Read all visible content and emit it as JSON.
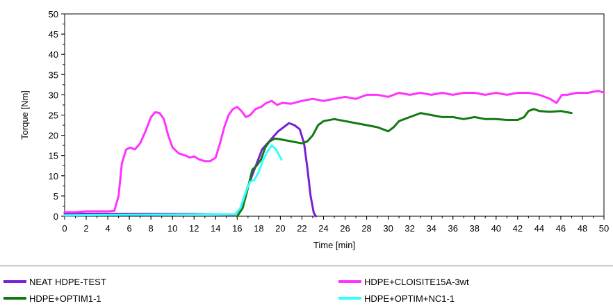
{
  "chart_data": {
    "type": "line",
    "title": "",
    "xlabel": "Time [min]",
    "ylabel": "Torque [Nm]",
    "xlim": [
      0,
      50
    ],
    "ylim": [
      0,
      50
    ],
    "x_ticks": [
      "0",
      "2",
      "4",
      "6",
      "8",
      "10",
      "12",
      "14",
      "16",
      "18",
      "20",
      "22",
      "24",
      "26",
      "28",
      "30",
      "32",
      "34",
      "36",
      "38",
      "40",
      "42",
      "44",
      "46",
      "48",
      "50"
    ],
    "y_ticks": [
      "0",
      "5",
      "10",
      "15",
      "20",
      "25",
      "30",
      "35",
      "40",
      "45",
      "50"
    ],
    "grid": false,
    "legend_position": "bottom",
    "series": [
      {
        "name": "NEAT HDPE-TEST",
        "color": "#7a1fd6",
        "points": [
          [
            0,
            0.6
          ],
          [
            4,
            0.6
          ],
          [
            8,
            0.6
          ],
          [
            12,
            0.6
          ],
          [
            15.8,
            0.4
          ],
          [
            16.3,
            2
          ],
          [
            16.8,
            6
          ],
          [
            17.3,
            9.5
          ],
          [
            17.8,
            13
          ],
          [
            18.3,
            16.5
          ],
          [
            18.8,
            18
          ],
          [
            19.3,
            19.5
          ],
          [
            19.8,
            21
          ],
          [
            20.3,
            22
          ],
          [
            20.8,
            23
          ],
          [
            21.3,
            22.5
          ],
          [
            21.8,
            21.5
          ],
          [
            22.2,
            18
          ],
          [
            22.5,
            12
          ],
          [
            22.8,
            5
          ],
          [
            23.1,
            0.8
          ],
          [
            23.3,
            0
          ]
        ]
      },
      {
        "name": "HDPE+CLOISITE15A-3wt",
        "color": "#ff33ff",
        "points": [
          [
            0,
            1
          ],
          [
            1,
            1
          ],
          [
            2,
            1.2
          ],
          [
            4,
            1.2
          ],
          [
            4.6,
            1.3
          ],
          [
            5.0,
            5
          ],
          [
            5.3,
            13
          ],
          [
            5.7,
            16.5
          ],
          [
            6.1,
            17
          ],
          [
            6.5,
            16.5
          ],
          [
            7.0,
            18
          ],
          [
            7.5,
            21
          ],
          [
            8.0,
            24.5
          ],
          [
            8.4,
            25.7
          ],
          [
            8.8,
            25.5
          ],
          [
            9.2,
            24
          ],
          [
            9.6,
            20
          ],
          [
            10.0,
            17
          ],
          [
            10.6,
            15.5
          ],
          [
            11.2,
            15
          ],
          [
            11.6,
            14.5
          ],
          [
            12.0,
            14.8
          ],
          [
            12.5,
            14
          ],
          [
            13.0,
            13.6
          ],
          [
            13.5,
            13.6
          ],
          [
            14.0,
            14.5
          ],
          [
            14.4,
            18
          ],
          [
            14.8,
            22
          ],
          [
            15.2,
            25
          ],
          [
            15.6,
            26.5
          ],
          [
            16.0,
            27
          ],
          [
            16.4,
            26
          ],
          [
            16.8,
            24.5
          ],
          [
            17.2,
            25
          ],
          [
            17.7,
            26.5
          ],
          [
            18.2,
            27
          ],
          [
            18.7,
            28
          ],
          [
            19.2,
            28.5
          ],
          [
            19.7,
            27.5
          ],
          [
            20.2,
            28
          ],
          [
            21,
            27.8
          ],
          [
            22,
            28.5
          ],
          [
            23,
            29
          ],
          [
            24,
            28.5
          ],
          [
            25,
            29
          ],
          [
            26,
            29.5
          ],
          [
            27,
            29
          ],
          [
            28,
            30
          ],
          [
            29,
            30
          ],
          [
            30,
            29.5
          ],
          [
            31,
            30.5
          ],
          [
            32,
            30
          ],
          [
            33,
            30.5
          ],
          [
            34,
            30
          ],
          [
            35,
            30.5
          ],
          [
            36,
            30
          ],
          [
            37,
            30.5
          ],
          [
            38,
            30.5
          ],
          [
            39,
            30
          ],
          [
            40,
            30.5
          ],
          [
            41,
            30
          ],
          [
            42,
            30.5
          ],
          [
            43,
            30.5
          ],
          [
            44,
            30
          ],
          [
            45,
            29
          ],
          [
            45.6,
            28
          ],
          [
            46.1,
            30
          ],
          [
            46.6,
            30
          ],
          [
            47.5,
            30.5
          ],
          [
            48.5,
            30.5
          ],
          [
            49.5,
            31
          ],
          [
            50,
            30.5
          ]
        ]
      },
      {
        "name": "HDPE+OPTIM1-1",
        "color": "#117a11",
        "points": [
          [
            16.0,
            0
          ],
          [
            16.5,
            2
          ],
          [
            17.0,
            7
          ],
          [
            17.4,
            11.5
          ],
          [
            17.8,
            12.5
          ],
          [
            18.2,
            14
          ],
          [
            18.6,
            17
          ],
          [
            19.0,
            18.5
          ],
          [
            19.5,
            19.2
          ],
          [
            20,
            19
          ],
          [
            21,
            18.5
          ],
          [
            22,
            18
          ],
          [
            22.5,
            18.5
          ],
          [
            23.0,
            20
          ],
          [
            23.5,
            22.5
          ],
          [
            24,
            23.5
          ],
          [
            25,
            24
          ],
          [
            26,
            23.5
          ],
          [
            27,
            23
          ],
          [
            28,
            22.5
          ],
          [
            29,
            22
          ],
          [
            30,
            21
          ],
          [
            30.5,
            22
          ],
          [
            31,
            23.5
          ],
          [
            32,
            24.5
          ],
          [
            33,
            25.5
          ],
          [
            34,
            25
          ],
          [
            35,
            24.5
          ],
          [
            36,
            24.5
          ],
          [
            37,
            24
          ],
          [
            38,
            24.5
          ],
          [
            39,
            24
          ],
          [
            40,
            24
          ],
          [
            41,
            23.8
          ],
          [
            42,
            23.8
          ],
          [
            42.6,
            24.5
          ],
          [
            43.0,
            26
          ],
          [
            43.5,
            26.5
          ],
          [
            44,
            26
          ],
          [
            45,
            25.8
          ],
          [
            46,
            26
          ],
          [
            47,
            25.5
          ]
        ]
      },
      {
        "name": "HDPE+OPTIM+NC1-1",
        "color": "#33ffff",
        "points": [
          [
            0,
            0.2
          ],
          [
            4,
            0.3
          ],
          [
            8,
            0.4
          ],
          [
            12,
            0.5
          ],
          [
            15.8,
            0.5
          ],
          [
            16.3,
            2
          ],
          [
            16.8,
            6
          ],
          [
            17.2,
            8.5
          ],
          [
            17.6,
            9
          ],
          [
            18.0,
            11
          ],
          [
            18.4,
            14
          ],
          [
            18.8,
            16
          ],
          [
            19.2,
            17.5
          ],
          [
            19.6,
            16.5
          ],
          [
            19.9,
            15
          ],
          [
            20.1,
            14
          ]
        ]
      }
    ]
  }
}
